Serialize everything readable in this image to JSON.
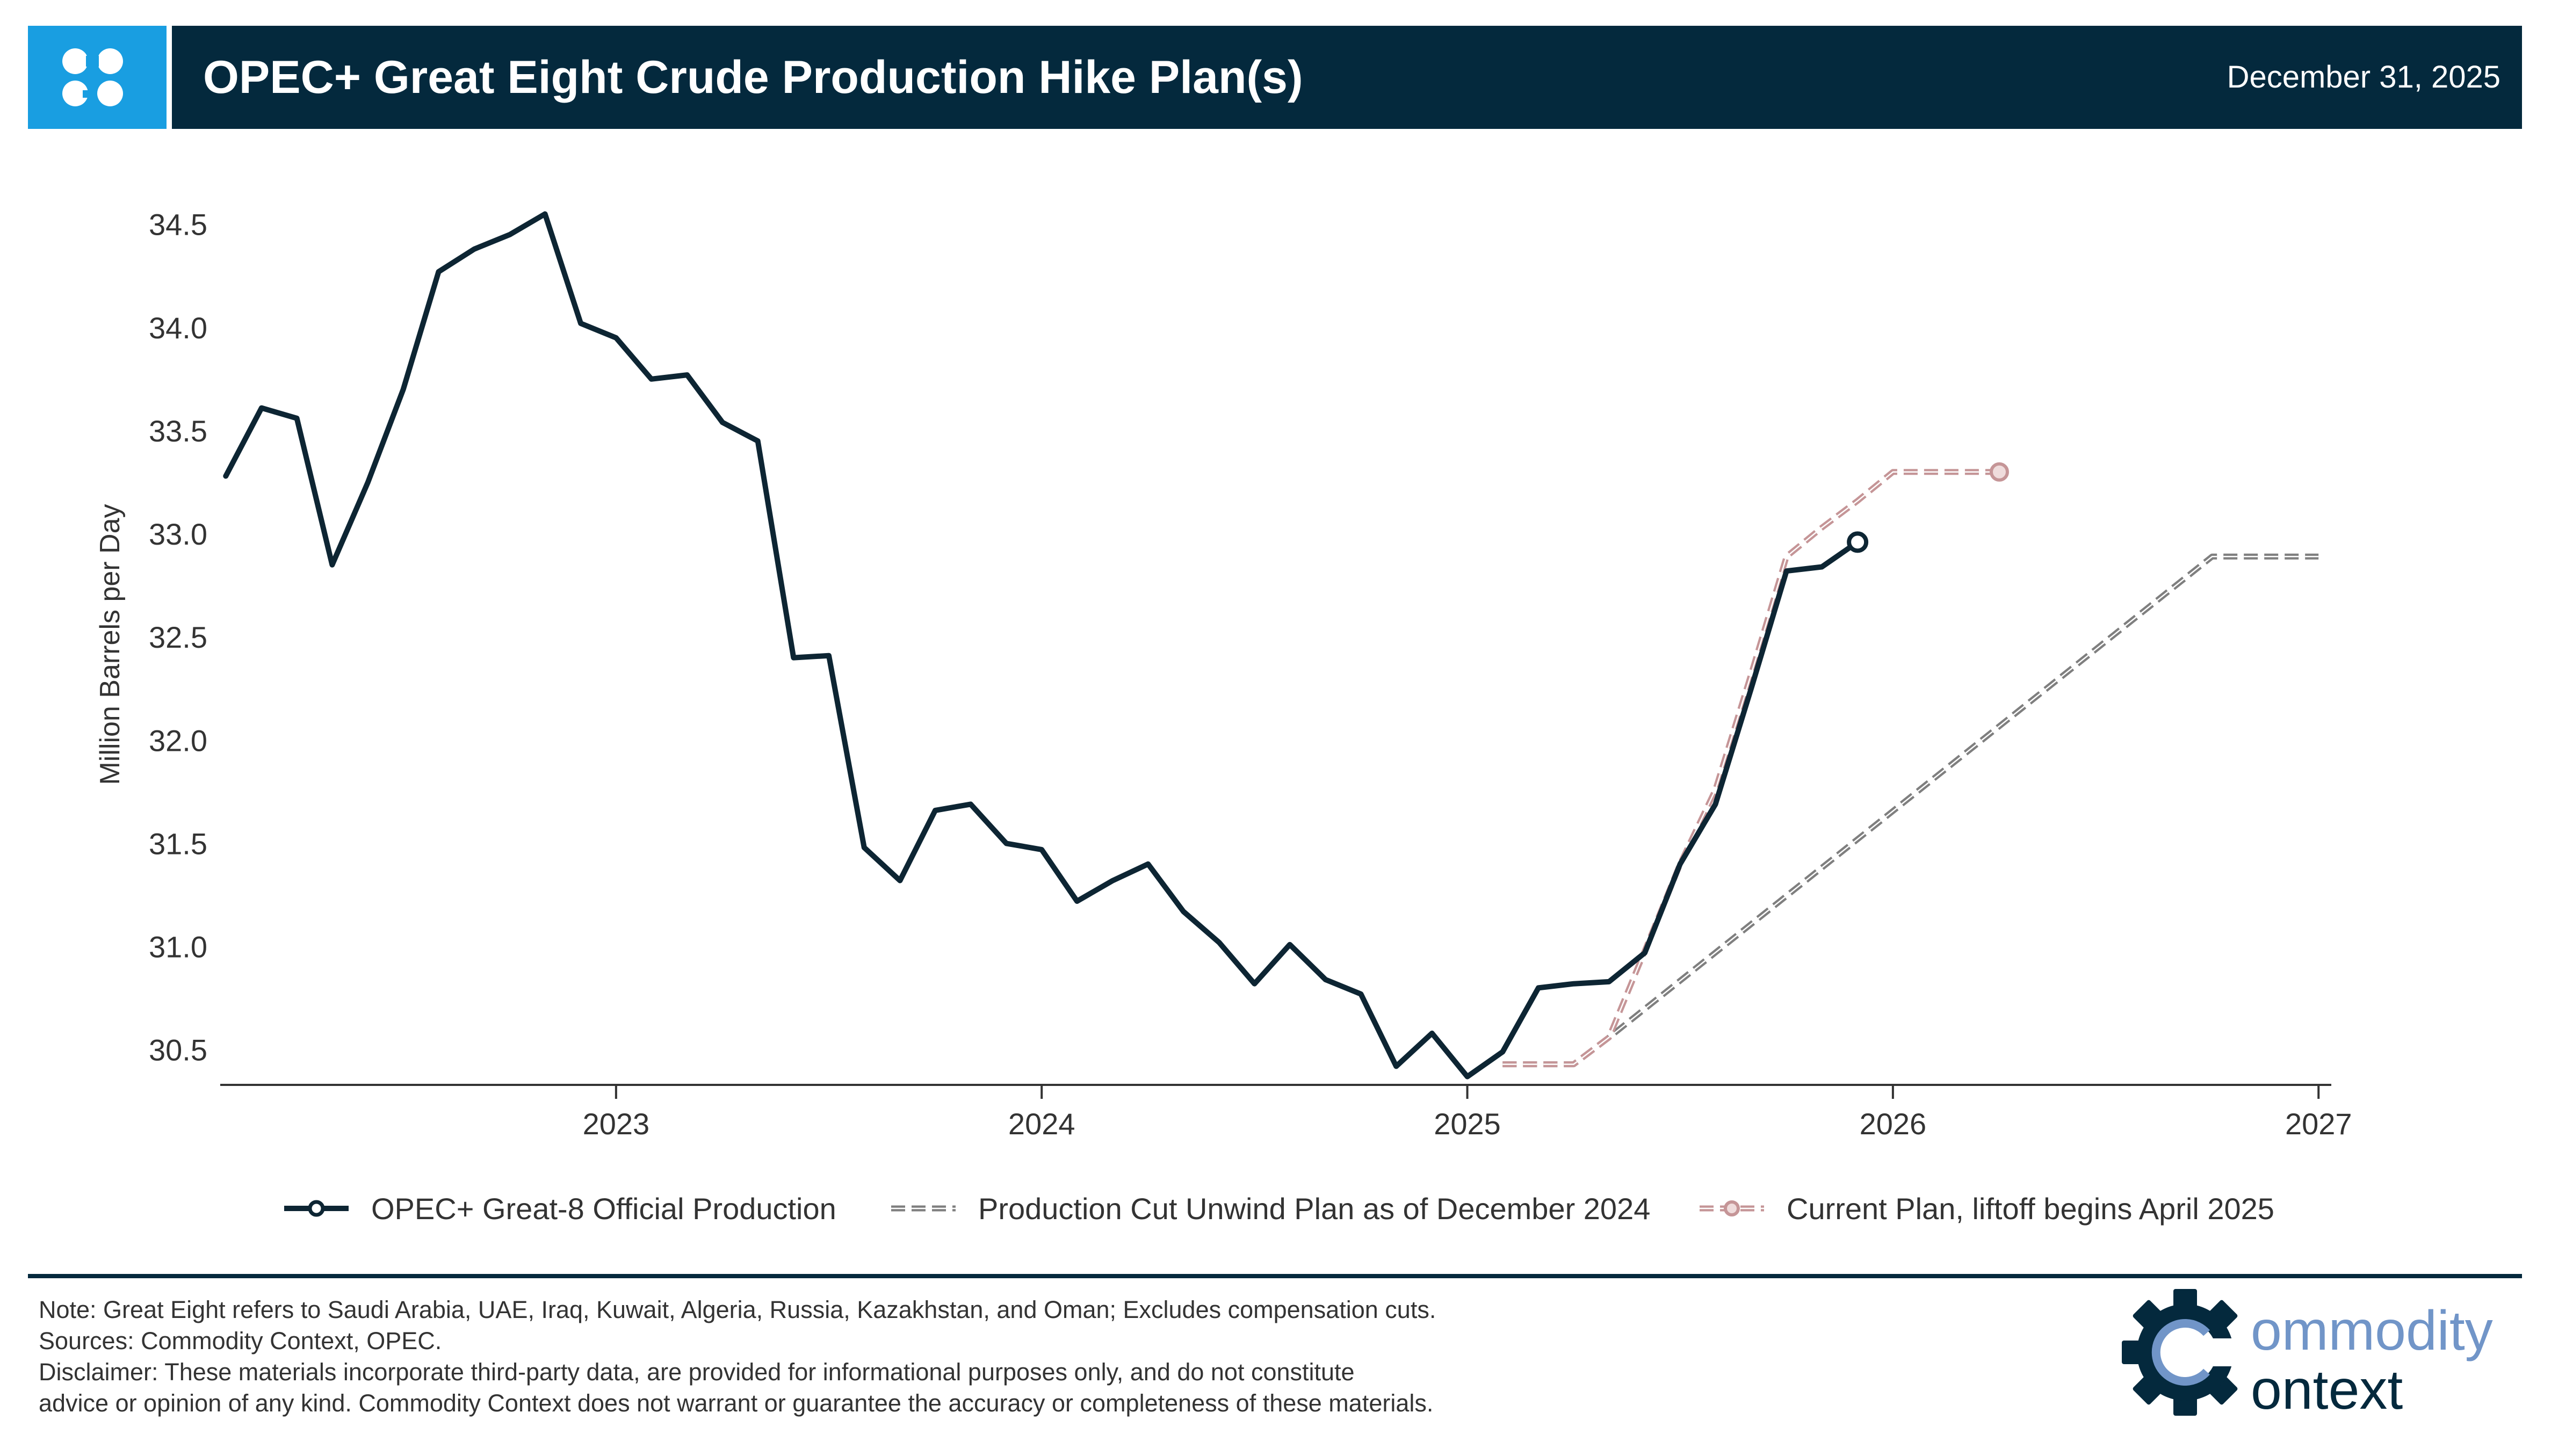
{
  "header": {
    "title": "OPEC+ Great Eight Crude Production Hike Plan(s)",
    "date": "December 31, 2025",
    "logo_icon": "opec-logo-icon"
  },
  "colors": {
    "header_bg": "#04293d",
    "logo_bg": "#199ee1",
    "official": "#0d2533",
    "plan_dec2024": "#7f7f7f",
    "plan_current": "#c59597",
    "brand_blue": "#7195c8"
  },
  "chart_data": {
    "type": "line",
    "title": "OPEC+ Great Eight Crude Production Hike Plan(s)",
    "xlabel": "",
    "ylabel": "Million Barrels per Day",
    "xlim": [
      2022.07,
      2027.03
    ],
    "ylim": [
      30.33,
      34.65
    ],
    "x_ticks": [
      2023,
      2024,
      2025,
      2026,
      2027
    ],
    "x_tick_labels": [
      "2023",
      "2024",
      "2025",
      "2026",
      "2027"
    ],
    "y_ticks": [
      30.5,
      31.0,
      31.5,
      32.0,
      32.5,
      33.0,
      33.5,
      34.0,
      34.5
    ],
    "y_tick_labels": [
      "30.5",
      "31.0",
      "31.5",
      "32.0",
      "32.5",
      "33.0",
      "33.5",
      "34.0",
      "34.5"
    ],
    "grid": false,
    "legend_position": "bottom",
    "series": [
      {
        "name": "OPEC+ Great-8 Official Production",
        "style": "solid",
        "end_marker": "circle",
        "x": [
          2022.083,
          2022.167,
          2022.25,
          2022.333,
          2022.417,
          2022.5,
          2022.583,
          2022.667,
          2022.75,
          2022.833,
          2022.917,
          2023.0,
          2023.083,
          2023.167,
          2023.25,
          2023.333,
          2023.417,
          2023.5,
          2023.583,
          2023.667,
          2023.75,
          2023.833,
          2023.917,
          2024.0,
          2024.083,
          2024.167,
          2024.25,
          2024.333,
          2024.417,
          2024.5,
          2024.583,
          2024.667,
          2024.75,
          2024.833,
          2024.917,
          2025.0,
          2025.083,
          2025.167,
          2025.25,
          2025.333,
          2025.417,
          2025.5,
          2025.583,
          2025.667,
          2025.75,
          2025.833,
          2025.917
        ],
        "values": [
          33.28,
          33.61,
          33.56,
          32.85,
          33.25,
          33.7,
          34.27,
          34.38,
          34.45,
          34.55,
          34.02,
          33.95,
          33.75,
          33.77,
          33.54,
          33.45,
          32.4,
          32.41,
          31.48,
          31.32,
          31.66,
          31.69,
          31.5,
          31.47,
          31.22,
          31.32,
          31.4,
          31.17,
          31.02,
          30.82,
          31.01,
          30.84,
          30.77,
          30.42,
          30.58,
          30.37,
          30.49,
          30.8,
          30.82,
          30.83,
          30.97,
          31.4,
          31.69,
          32.25,
          32.82,
          32.84,
          32.96
        ]
      },
      {
        "name": "Production Cut Unwind Plan as of December 2024",
        "style": "dashed",
        "x": [
          2025.083,
          2025.25,
          2025.333,
          2026.75,
          2027.0
        ],
        "values": [
          30.43,
          30.43,
          30.56,
          32.89,
          32.89
        ]
      },
      {
        "name": "Current Plan, liftoff begins April 2025",
        "style": "dashed",
        "end_marker": "circle",
        "x": [
          2025.083,
          2025.25,
          2025.333,
          2025.417,
          2025.5,
          2025.583,
          2025.667,
          2025.75,
          2025.833,
          2025.917,
          2026.0,
          2026.083,
          2026.167,
          2026.25
        ],
        "values": [
          30.43,
          30.43,
          30.56,
          30.98,
          31.4,
          31.76,
          32.32,
          32.89,
          33.03,
          33.16,
          33.3,
          33.3,
          33.3,
          33.3
        ]
      }
    ]
  },
  "footer": {
    "note": "Note: Great Eight refers to Saudi Arabia, UAE, Iraq, Kuwait, Algeria, Russia, Kazakhstan, and Oman; Excludes compensation cuts.",
    "sources": "Sources: Commodity Context, OPEC.",
    "disclaimer_line1": "Disclaimer: These materials incorporate third-party data, are provided for informational purposes only, and do not constitute",
    "disclaimer_line2": "advice or opinion of any kind. Commodity Context does not warrant or guarantee the accuracy or completeness of these materials.",
    "brand_word1": "ommodity",
    "brand_word2": "ontext",
    "brand_icon": "gear-c-icon"
  }
}
